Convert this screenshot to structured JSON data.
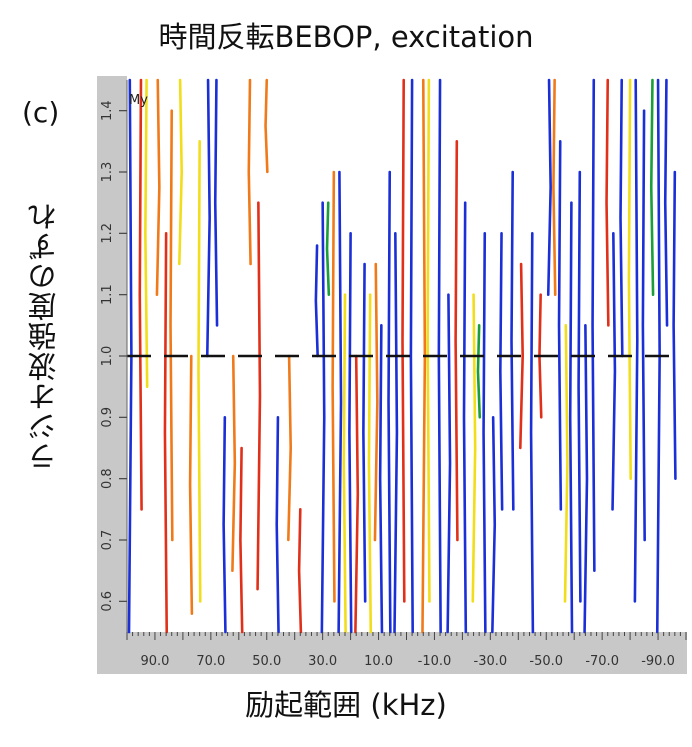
{
  "title": "時間反転BEBOP, excitation",
  "panel_label": "(c)",
  "chart_data": {
    "type": "heatmap",
    "subtype": "contour",
    "xlabel": "励起範囲 (kHz)",
    "ylabel": "ラジオ波強度のずれ",
    "inner_label": "My",
    "x_ticks": [
      "90.0",
      "70.0",
      "50.0",
      "30.0",
      "10.0",
      "-10.0",
      "-30.0",
      "-50.0",
      "-70.0",
      "-90.0"
    ],
    "y_ticks": [
      "0.6",
      "0.7",
      "0.8",
      "0.9",
      "1.0",
      "1.1",
      "1.2",
      "1.3",
      "1.4"
    ],
    "xlim": [
      100,
      -100
    ],
    "ylim": [
      0.55,
      1.45
    ],
    "reference_line": {
      "y": 1.0,
      "style": "dashed",
      "color": "#111111"
    },
    "colors": {
      "low": "#1a2fd6",
      "mid": "#1a9e3a",
      "yellow": "#f2dd1a",
      "orange": "#f07a1a",
      "red": "#e0301a"
    },
    "contours": [
      {
        "x": 99,
        "y": [
          0.55,
          1.45
        ],
        "color": "#1a2fd6"
      },
      {
        "x": 95,
        "y": [
          0.75,
          1.45
        ],
        "color": "#e0301a"
      },
      {
        "x": 93,
        "y": [
          0.95,
          1.45
        ],
        "color": "#f2dd1a"
      },
      {
        "x": 89,
        "y": [
          1.1,
          1.45
        ],
        "color": "#f07a1a"
      },
      {
        "x": 86,
        "y": [
          0.55,
          1.2
        ],
        "color": "#e0301a"
      },
      {
        "x": 84,
        "y": [
          0.7,
          1.4
        ],
        "color": "#f07a1a"
      },
      {
        "x": 81,
        "y": [
          1.15,
          1.45
        ],
        "color": "#f2dd1a"
      },
      {
        "x": 77,
        "y": [
          0.58,
          1.0
        ],
        "color": "#f07a1a"
      },
      {
        "x": 74,
        "y": [
          0.6,
          1.35
        ],
        "color": "#f2dd1a"
      },
      {
        "x": 71,
        "y": [
          1.0,
          1.45
        ],
        "color": "#1a2fd6"
      },
      {
        "x": 68,
        "y": [
          1.05,
          1.45
        ],
        "color": "#1a2fd6"
      },
      {
        "x": 65,
        "y": [
          0.55,
          0.9
        ],
        "color": "#1a2fd6"
      },
      {
        "x": 62,
        "y": [
          0.65,
          1.0
        ],
        "color": "#f07a1a"
      },
      {
        "x": 59,
        "y": [
          0.55,
          0.85
        ],
        "color": "#e0301a"
      },
      {
        "x": 56,
        "y": [
          1.15,
          1.45
        ],
        "color": "#f07a1a"
      },
      {
        "x": 53,
        "y": [
          0.62,
          1.25
        ],
        "color": "#e0301a"
      },
      {
        "x": 50,
        "y": [
          1.3,
          1.45
        ],
        "color": "#f07a1a"
      },
      {
        "x": 46,
        "y": [
          0.55,
          0.9
        ],
        "color": "#1a2fd6"
      },
      {
        "x": 42,
        "y": [
          0.7,
          1.0
        ],
        "color": "#f07a1a"
      },
      {
        "x": 38,
        "y": [
          0.55,
          0.75
        ],
        "color": "#e0301a"
      },
      {
        "x": 32,
        "y": [
          1.0,
          1.18
        ],
        "color": "#1a2fd6"
      },
      {
        "x": 30,
        "y": [
          0.55,
          1.25
        ],
        "color": "#1a2fd6"
      },
      {
        "x": 28,
        "y": [
          1.1,
          1.25
        ],
        "color": "#1a9e3a"
      },
      {
        "x": 26,
        "y": [
          0.6,
          1.3
        ],
        "color": "#f07a1a"
      },
      {
        "x": 24,
        "y": [
          0.55,
          1.3
        ],
        "color": "#1a2fd6"
      },
      {
        "x": 22,
        "y": [
          0.55,
          1.1
        ],
        "color": "#f2dd1a"
      },
      {
        "x": 20,
        "y": [
          0.55,
          1.2
        ],
        "color": "#1a2fd6"
      },
      {
        "x": 18,
        "y": [
          0.55,
          1.0
        ],
        "color": "#e0301a"
      },
      {
        "x": 15,
        "y": [
          0.6,
          1.15
        ],
        "color": "#1a2fd6"
      },
      {
        "x": 13,
        "y": [
          0.55,
          1.1
        ],
        "color": "#f2dd1a"
      },
      {
        "x": 11,
        "y": [
          0.7,
          1.15
        ],
        "color": "#f07a1a"
      },
      {
        "x": 9,
        "y": [
          0.55,
          1.05
        ],
        "color": "#1a2fd6"
      },
      {
        "x": 6,
        "y": [
          0.55,
          1.3
        ],
        "color": "#1a2fd6"
      },
      {
        "x": 4,
        "y": [
          0.55,
          1.2
        ],
        "color": "#1a2fd6"
      },
      {
        "x": 1,
        "y": [
          0.6,
          1.45
        ],
        "color": "#e0301a"
      },
      {
        "x": -2,
        "y": [
          0.55,
          1.45
        ],
        "color": "#1a2fd6"
      },
      {
        "x": -6,
        "y": [
          0.55,
          1.45
        ],
        "color": "#f07a1a"
      },
      {
        "x": -8,
        "y": [
          0.6,
          1.45
        ],
        "color": "#f2dd1a"
      },
      {
        "x": -12,
        "y": [
          0.55,
          1.45
        ],
        "color": "#1a2fd6"
      },
      {
        "x": -15,
        "y": [
          0.55,
          1.1
        ],
        "color": "#1a2fd6"
      },
      {
        "x": -18,
        "y": [
          0.7,
          1.35
        ],
        "color": "#e0301a"
      },
      {
        "x": -21,
        "y": [
          0.55,
          1.25
        ],
        "color": "#1a2fd6"
      },
      {
        "x": -24,
        "y": [
          0.6,
          1.1
        ],
        "color": "#f2dd1a"
      },
      {
        "x": -26,
        "y": [
          0.9,
          1.05
        ],
        "color": "#1a9e3a"
      },
      {
        "x": -28,
        "y": [
          0.55,
          1.2
        ],
        "color": "#1a2fd6"
      },
      {
        "x": -31,
        "y": [
          0.55,
          0.9
        ],
        "color": "#1a2fd6"
      },
      {
        "x": -34,
        "y": [
          0.75,
          1.2
        ],
        "color": "#1a2fd6"
      },
      {
        "x": -38,
        "y": [
          0.75,
          1.3
        ],
        "color": "#1a2fd6"
      },
      {
        "x": -41,
        "y": [
          0.85,
          1.15
        ],
        "color": "#e0301a"
      },
      {
        "x": -45,
        "y": [
          0.55,
          1.2
        ],
        "color": "#1a2fd6"
      },
      {
        "x": -48,
        "y": [
          0.9,
          1.1
        ],
        "color": "#e0301a"
      },
      {
        "x": -51,
        "y": [
          1.1,
          1.45
        ],
        "color": "#1a2fd6"
      },
      {
        "x": -53,
        "y": [
          1.1,
          1.45
        ],
        "color": "#f07a1a"
      },
      {
        "x": -55,
        "y": [
          0.75,
          1.35
        ],
        "color": "#1a2fd6"
      },
      {
        "x": -57,
        "y": [
          0.6,
          1.05
        ],
        "color": "#f2dd1a"
      },
      {
        "x": -59,
        "y": [
          0.55,
          1.25
        ],
        "color": "#1a2fd6"
      },
      {
        "x": -62,
        "y": [
          0.6,
          1.3
        ],
        "color": "#1a2fd6"
      },
      {
        "x": -64,
        "y": [
          0.55,
          1.05
        ],
        "color": "#1a2fd6"
      },
      {
        "x": -67,
        "y": [
          0.65,
          1.45
        ],
        "color": "#1a2fd6"
      },
      {
        "x": -72,
        "y": [
          1.05,
          1.45
        ],
        "color": "#e0301a"
      },
      {
        "x": -74,
        "y": [
          0.75,
          1.2
        ],
        "color": "#1a2fd6"
      },
      {
        "x": -77,
        "y": [
          1.0,
          1.45
        ],
        "color": "#1a2fd6"
      },
      {
        "x": -80,
        "y": [
          0.8,
          1.45
        ],
        "color": "#f2dd1a"
      },
      {
        "x": -82,
        "y": [
          0.6,
          1.45
        ],
        "color": "#1a2fd6"
      },
      {
        "x": -85,
        "y": [
          0.7,
          1.4
        ],
        "color": "#1a2fd6"
      },
      {
        "x": -88,
        "y": [
          1.1,
          1.45
        ],
        "color": "#1a9e3a"
      },
      {
        "x": -90,
        "y": [
          0.55,
          1.45
        ],
        "color": "#1a2fd6"
      },
      {
        "x": -93,
        "y": [
          1.05,
          1.45
        ],
        "color": "#1a2fd6"
      },
      {
        "x": -96,
        "y": [
          0.8,
          1.3
        ],
        "color": "#1a2fd6"
      }
    ]
  }
}
